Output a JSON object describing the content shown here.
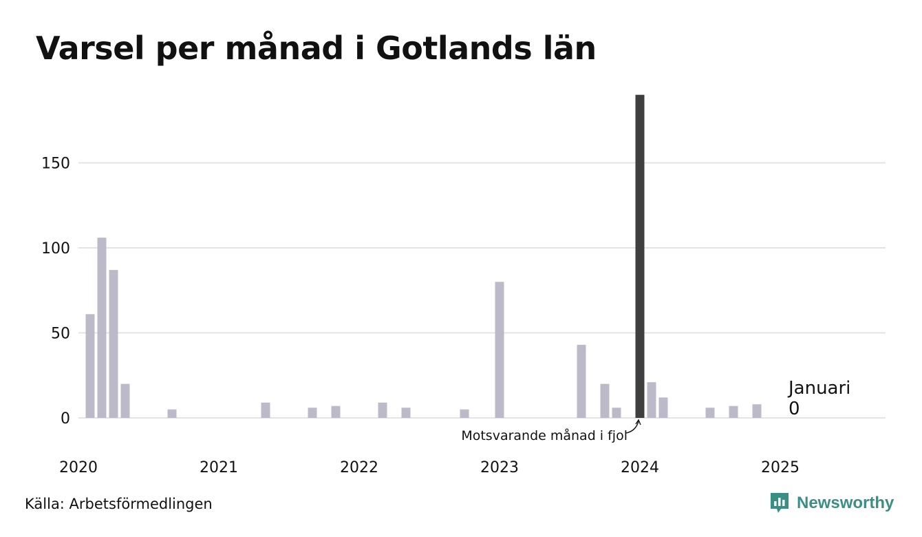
{
  "title": "Varsel per månad i Gotlands län",
  "source": "Källa: Arbetsförmedlingen",
  "brand": {
    "name": "Newsworthy",
    "color": "#3a8f84",
    "icon": "newsworthy-logo-icon"
  },
  "colors": {
    "bar": "#bcbac8",
    "highlight": "#3f3f3f",
    "grid": "#e3e3e3",
    "text": "#111111"
  },
  "chart_data": {
    "type": "bar",
    "xlabel": "",
    "ylabel": "",
    "ylim": [
      0,
      190
    ],
    "yticks": [
      0,
      50,
      100,
      150
    ],
    "xticks": [
      "2020",
      "2021",
      "2022",
      "2023",
      "2024",
      "2025"
    ],
    "grid": true,
    "series": [
      {
        "values": [
          {
            "date": "2020-02",
            "value": 61
          },
          {
            "date": "2020-03",
            "value": 106
          },
          {
            "date": "2020-04",
            "value": 87
          },
          {
            "date": "2020-05",
            "value": 20
          },
          {
            "date": "2020-09",
            "value": 5
          },
          {
            "date": "2021-05",
            "value": 9
          },
          {
            "date": "2021-09",
            "value": 6
          },
          {
            "date": "2021-11",
            "value": 7
          },
          {
            "date": "2022-03",
            "value": 9
          },
          {
            "date": "2022-05",
            "value": 6
          },
          {
            "date": "2022-10",
            "value": 5
          },
          {
            "date": "2023-01",
            "value": 80
          },
          {
            "date": "2023-08",
            "value": 43
          },
          {
            "date": "2023-10",
            "value": 20
          },
          {
            "date": "2023-11",
            "value": 6
          },
          {
            "date": "2024-01",
            "value": 190,
            "highlight": true
          },
          {
            "date": "2024-02",
            "value": 21
          },
          {
            "date": "2024-03",
            "value": 12
          },
          {
            "date": "2024-07",
            "value": 6
          },
          {
            "date": "2024-09",
            "value": 7
          },
          {
            "date": "2024-11",
            "value": 8
          }
        ]
      }
    ],
    "annotations": [
      {
        "date": "2024-01",
        "text": "Motsvarande månad i fjol"
      },
      {
        "date": "2025-01",
        "label": "Januari",
        "value_text": "0"
      }
    ]
  }
}
